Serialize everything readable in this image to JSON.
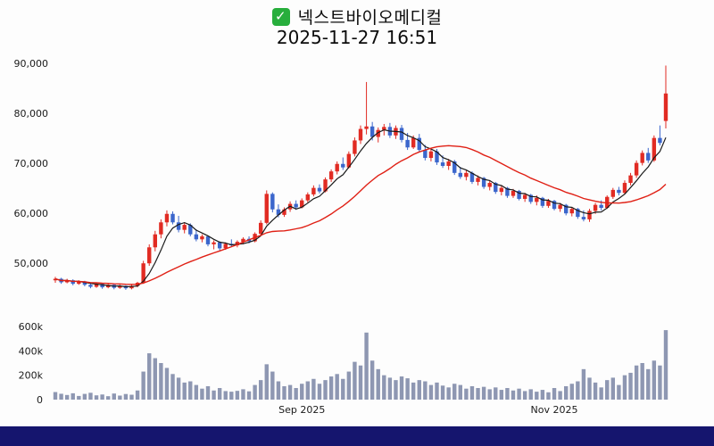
{
  "header": {
    "checkmark_glyph": "✓",
    "title": "넥스트바이오메디컬",
    "datetime": "2025-11-27 16:51"
  },
  "colors": {
    "up": "#e12b23",
    "down": "#3b66cc",
    "volume": "#8e97b2",
    "axis_text": "#1a1a1a",
    "bottom_bar": "#15156e",
    "checkbox_green": "#27ae3c",
    "page_background": "#fdfdfd"
  },
  "chart_data": {
    "type": "candlestick",
    "title": "넥스트바이오메디컬",
    "subtitle": "2025-11-27 16:51",
    "grid": false,
    "legend": "none",
    "price_axis": {
      "range": [
        42000,
        92000
      ],
      "ticks": [
        {
          "label": "90,000",
          "value": 90000
        },
        {
          "label": "80,000",
          "value": 80000
        },
        {
          "label": "70,000",
          "value": 70000
        },
        {
          "label": "60,000",
          "value": 60000
        },
        {
          "label": "50,000",
          "value": 50000
        }
      ]
    },
    "volume_axis": {
      "max": 600000,
      "ticks": [
        {
          "label": "600k",
          "value": 600000
        },
        {
          "label": "400k",
          "value": 400000
        },
        {
          "label": "200k",
          "value": 200000
        },
        {
          "label": "0",
          "value": 0
        }
      ]
    },
    "x_axis": {
      "labels": [
        {
          "text": "Sep 2025",
          "index": 42
        },
        {
          "text": "Nov 2025",
          "index": 85
        }
      ]
    },
    "moving_averages": [
      {
        "name": "fast",
        "window": 5,
        "color": "#1a1a1a",
        "width": 1.2
      },
      {
        "name": "slow",
        "window": 20,
        "color": "#e02015",
        "width": 1.4
      }
    ],
    "columns": [
      "open",
      "high",
      "low",
      "close",
      "volume"
    ],
    "candles": [
      [
        46600,
        47300,
        46100,
        46900,
        62000
      ],
      [
        46900,
        47100,
        45900,
        46200,
        48000
      ],
      [
        46200,
        46900,
        46000,
        46600,
        38000
      ],
      [
        46600,
        46800,
        45600,
        45900,
        52000
      ],
      [
        45900,
        46600,
        45700,
        46400,
        30000
      ],
      [
        46400,
        46500,
        45400,
        45700,
        47000
      ],
      [
        45700,
        46000,
        45000,
        45300,
        56000
      ],
      [
        45300,
        46100,
        45100,
        45900,
        35000
      ],
      [
        45900,
        46000,
        44900,
        45200,
        42000
      ],
      [
        45200,
        45900,
        45000,
        45700,
        28000
      ],
      [
        45700,
        45800,
        44800,
        45100,
        50000
      ],
      [
        45100,
        45700,
        44900,
        45500,
        33000
      ],
      [
        45500,
        45600,
        44700,
        45000,
        46000
      ],
      [
        45000,
        45700,
        44800,
        45500,
        40000
      ],
      [
        45500,
        46300,
        45200,
        46100,
        75000
      ],
      [
        46100,
        50500,
        45900,
        50000,
        230000
      ],
      [
        50000,
        53800,
        49500,
        53200,
        380000
      ],
      [
        53200,
        56500,
        52400,
        55800,
        340000
      ],
      [
        55800,
        58800,
        55000,
        58200,
        300000
      ],
      [
        58200,
        60600,
        57400,
        59900,
        260000
      ],
      [
        59900,
        60400,
        57800,
        58200,
        210000
      ],
      [
        58200,
        59500,
        56200,
        56700,
        180000
      ],
      [
        56700,
        58200,
        56000,
        57700,
        140000
      ],
      [
        57700,
        58000,
        55400,
        55800,
        150000
      ],
      [
        55800,
        56800,
        54400,
        54800,
        120000
      ],
      [
        54800,
        55800,
        54200,
        55400,
        90000
      ],
      [
        55400,
        55600,
        53400,
        53800,
        110000
      ],
      [
        53800,
        54600,
        52800,
        54200,
        75000
      ],
      [
        54200,
        54400,
        52600,
        53000,
        95000
      ],
      [
        53000,
        54200,
        52700,
        53900,
        70000
      ],
      [
        53900,
        54800,
        53300,
        53600,
        65000
      ],
      [
        53600,
        54600,
        53200,
        54300,
        72000
      ],
      [
        54300,
        55200,
        53800,
        54900,
        85000
      ],
      [
        54900,
        55400,
        54000,
        54400,
        68000
      ],
      [
        54400,
        56200,
        54200,
        55900,
        120000
      ],
      [
        55900,
        58600,
        55600,
        58100,
        160000
      ],
      [
        58100,
        64600,
        57800,
        63900,
        290000
      ],
      [
        63900,
        64200,
        60200,
        60800,
        230000
      ],
      [
        60800,
        61800,
        59200,
        59700,
        150000
      ],
      [
        59700,
        61200,
        59300,
        60800,
        110000
      ],
      [
        60800,
        62400,
        60300,
        61900,
        120000
      ],
      [
        61900,
        62600,
        60700,
        61200,
        95000
      ],
      [
        61200,
        63000,
        61000,
        62600,
        130000
      ],
      [
        62600,
        64200,
        62200,
        63800,
        150000
      ],
      [
        63800,
        65600,
        63400,
        65100,
        170000
      ],
      [
        65100,
        65800,
        64000,
        64400,
        130000
      ],
      [
        64400,
        67200,
        64200,
        66800,
        160000
      ],
      [
        66800,
        68800,
        66300,
        68400,
        190000
      ],
      [
        68400,
        70400,
        67800,
        69900,
        210000
      ],
      [
        69900,
        71200,
        68700,
        69200,
        170000
      ],
      [
        69200,
        72400,
        69000,
        71900,
        230000
      ],
      [
        71900,
        75200,
        71400,
        74600,
        310000
      ],
      [
        74600,
        77600,
        73900,
        76900,
        280000
      ],
      [
        76900,
        86300,
        75800,
        77400,
        550000
      ],
      [
        77400,
        78300,
        74600,
        75300,
        320000
      ],
      [
        75300,
        77200,
        74200,
        76700,
        250000
      ],
      [
        76700,
        77900,
        75600,
        77300,
        200000
      ],
      [
        77300,
        78100,
        75100,
        75600,
        180000
      ],
      [
        75600,
        77600,
        74900,
        77100,
        160000
      ],
      [
        77100,
        77700,
        74200,
        74700,
        190000
      ],
      [
        74700,
        76100,
        72700,
        73200,
        175000
      ],
      [
        73200,
        75600,
        72900,
        75100,
        140000
      ],
      [
        75100,
        75900,
        72200,
        72700,
        160000
      ],
      [
        72700,
        73700,
        70600,
        71100,
        150000
      ],
      [
        71100,
        72900,
        70400,
        72400,
        120000
      ],
      [
        72400,
        72900,
        69700,
        70200,
        140000
      ],
      [
        70200,
        71600,
        69100,
        69500,
        115000
      ],
      [
        69500,
        70900,
        68700,
        70400,
        100000
      ],
      [
        70400,
        70700,
        67700,
        68100,
        130000
      ],
      [
        68100,
        69300,
        66900,
        67300,
        120000
      ],
      [
        67300,
        68600,
        66600,
        68100,
        90000
      ],
      [
        68100,
        68400,
        65900,
        66300,
        110000
      ],
      [
        66300,
        67600,
        65600,
        67100,
        95000
      ],
      [
        67100,
        67300,
        64900,
        65300,
        105000
      ],
      [
        65300,
        66600,
        64600,
        66100,
        85000
      ],
      [
        66100,
        66300,
        63900,
        64300,
        100000
      ],
      [
        64300,
        65600,
        63600,
        65100,
        80000
      ],
      [
        65100,
        65300,
        63100,
        63500,
        95000
      ],
      [
        63500,
        64900,
        63100,
        64500,
        75000
      ],
      [
        64500,
        64700,
        62600,
        62900,
        90000
      ],
      [
        62900,
        64100,
        62300,
        63700,
        70000
      ],
      [
        63700,
        63900,
        61900,
        62300,
        85000
      ],
      [
        62300,
        63600,
        61600,
        63100,
        65000
      ],
      [
        63100,
        63300,
        61100,
        61500,
        80000
      ],
      [
        61500,
        62900,
        61100,
        62500,
        60000
      ],
      [
        62500,
        62700,
        60600,
        60900,
        95000
      ],
      [
        60900,
        62100,
        60300,
        61700,
        70000
      ],
      [
        61700,
        61900,
        59600,
        60000,
        110000
      ],
      [
        60000,
        61300,
        59400,
        60900,
        130000
      ],
      [
        60900,
        61100,
        58900,
        59300,
        150000
      ],
      [
        59300,
        60600,
        58400,
        58800,
        250000
      ],
      [
        58800,
        60900,
        58300,
        60500,
        180000
      ],
      [
        60500,
        62100,
        59900,
        61700,
        140000
      ],
      [
        61700,
        62600,
        60600,
        61100,
        100000
      ],
      [
        61100,
        63600,
        60900,
        63300,
        160000
      ],
      [
        63300,
        65100,
        62900,
        64700,
        180000
      ],
      [
        64700,
        65300,
        63600,
        64100,
        120000
      ],
      [
        64100,
        66600,
        63900,
        66100,
        200000
      ],
      [
        66100,
        68100,
        65600,
        67600,
        220000
      ],
      [
        67600,
        70600,
        67100,
        70100,
        280000
      ],
      [
        70100,
        72600,
        69600,
        72100,
        300000
      ],
      [
        72100,
        73100,
        70100,
        70600,
        250000
      ],
      [
        70600,
        75600,
        70300,
        75100,
        320000
      ],
      [
        75100,
        77600,
        73600,
        74100,
        280000
      ],
      [
        78500,
        89600,
        77000,
        84000,
        570000
      ]
    ]
  }
}
